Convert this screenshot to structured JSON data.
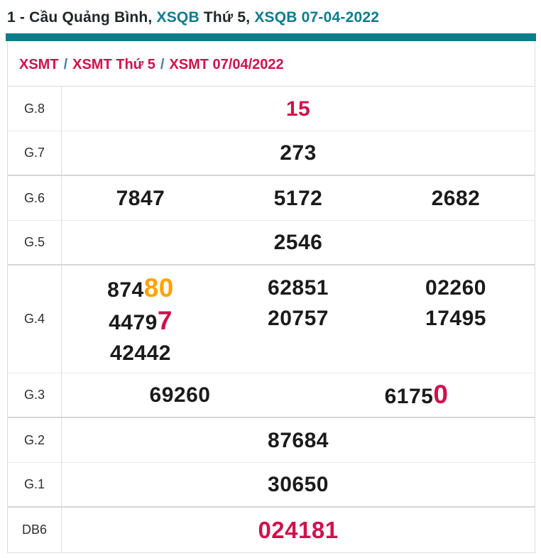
{
  "colors": {
    "teal": "#0d7c8b",
    "red": "#d0104c",
    "orange": "#ffa200",
    "separator_blue": "#4a7b9d"
  },
  "title": {
    "prefix": "1 - Cầu Quảng Bình, ",
    "link1": "XSQB",
    "middle": " Thứ 5, ",
    "link2": "XSQB 07-04-2022"
  },
  "breadcrumb": {
    "separator": "/",
    "items": [
      {
        "label": "XSMT"
      },
      {
        "label": "XSMT Thứ 5"
      },
      {
        "label": "XSMT 07/04/2022"
      }
    ]
  },
  "results_table": {
    "rows": [
      {
        "label": "G.8",
        "pair_end": false,
        "cells": [
          [
            [
              {
                "text": "15",
                "color": "red"
              }
            ]
          ]
        ]
      },
      {
        "label": "G.7",
        "pair_end": true,
        "cells": [
          [
            [
              {
                "text": "273"
              }
            ]
          ]
        ]
      },
      {
        "label": "G.6",
        "pair_end": false,
        "cells": [
          [
            [
              {
                "text": "7847"
              }
            ]
          ],
          [
            [
              {
                "text": "5172"
              }
            ]
          ],
          [
            [
              {
                "text": "2682"
              }
            ]
          ]
        ]
      },
      {
        "label": "G.5",
        "pair_end": true,
        "cells": [
          [
            [
              {
                "text": "2546"
              }
            ]
          ]
        ]
      },
      {
        "label": "G.4",
        "pair_end": false,
        "cells": [
          [
            [
              {
                "text": "874"
              },
              {
                "text": "80",
                "color": "orange",
                "big": true
              }
            ],
            [
              {
                "text": "4479"
              },
              {
                "text": "7",
                "color": "red",
                "big": true
              }
            ],
            [
              {
                "text": "42442"
              }
            ]
          ],
          [
            [
              {
                "text": "62851"
              }
            ],
            [
              {
                "text": "20757"
              }
            ]
          ],
          [
            [
              {
                "text": "02260"
              }
            ],
            [
              {
                "text": "17495"
              }
            ]
          ]
        ]
      },
      {
        "label": "G.3",
        "pair_end": true,
        "cells": [
          [
            [
              {
                "text": "69260"
              }
            ]
          ],
          [
            [
              {
                "text": "6175"
              },
              {
                "text": "0",
                "color": "red",
                "big": true
              }
            ]
          ]
        ]
      },
      {
        "label": "G.2",
        "pair_end": false,
        "cells": [
          [
            [
              {
                "text": "87684"
              }
            ]
          ]
        ]
      },
      {
        "label": "G.1",
        "pair_end": true,
        "cells": [
          [
            [
              {
                "text": "30650"
              }
            ]
          ]
        ]
      },
      {
        "label": "DB6",
        "pair_end": false,
        "large": true,
        "cells": [
          [
            [
              {
                "text": "024181",
                "color": "red"
              }
            ]
          ]
        ]
      }
    ]
  }
}
